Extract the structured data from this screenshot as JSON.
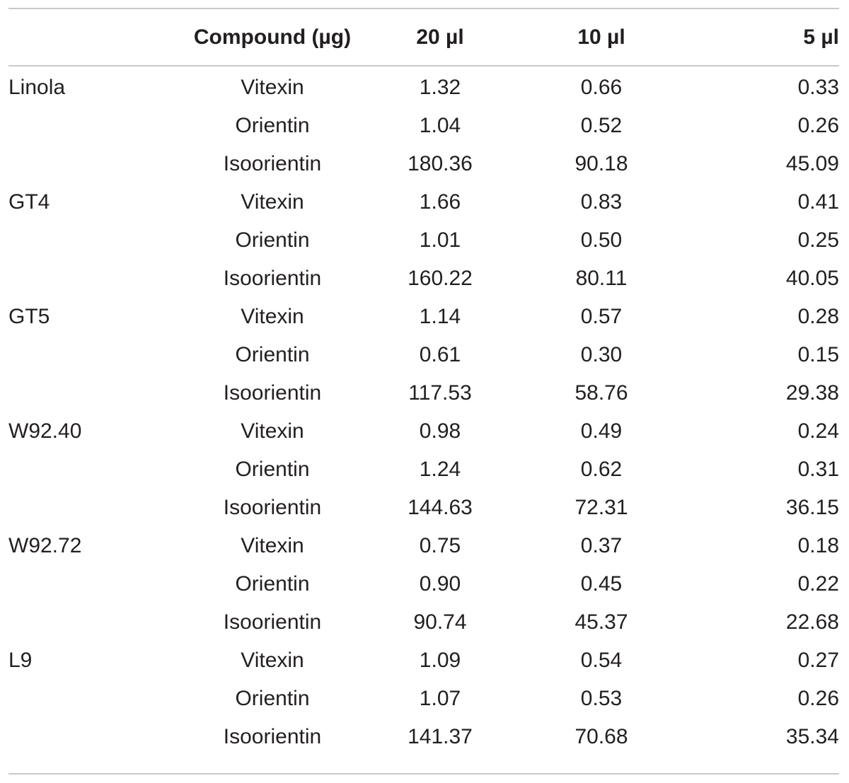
{
  "table": {
    "headers": {
      "line": "",
      "compound": "Compound (µg)",
      "v20": "20 µl",
      "v10": "10 µl",
      "v5": "5 µl"
    },
    "rows": [
      {
        "line": "Linola",
        "compound": "Vitexin",
        "v20": "1.32",
        "v10": "0.66",
        "v5": "0.33"
      },
      {
        "line": "",
        "compound": "Orientin",
        "v20": "1.04",
        "v10": "0.52",
        "v5": "0.26"
      },
      {
        "line": "",
        "compound": "Isoorientin",
        "v20": "180.36",
        "v10": "90.18",
        "v5": "45.09"
      },
      {
        "line": "GT4",
        "compound": "Vitexin",
        "v20": "1.66",
        "v10": "0.83",
        "v5": "0.41"
      },
      {
        "line": "",
        "compound": "Orientin",
        "v20": "1.01",
        "v10": "0.50",
        "v5": "0.25"
      },
      {
        "line": "",
        "compound": "Isoorientin",
        "v20": "160.22",
        "v10": "80.11",
        "v5": "40.05"
      },
      {
        "line": "GT5",
        "compound": "Vitexin",
        "v20": "1.14",
        "v10": "0.57",
        "v5": "0.28"
      },
      {
        "line": "",
        "compound": "Orientin",
        "v20": "0.61",
        "v10": "0.30",
        "v5": "0.15"
      },
      {
        "line": "",
        "compound": "Isoorientin",
        "v20": "117.53",
        "v10": "58.76",
        "v5": "29.38"
      },
      {
        "line": "W92.40",
        "compound": "Vitexin",
        "v20": "0.98",
        "v10": "0.49",
        "v5": "0.24"
      },
      {
        "line": "",
        "compound": "Orientin",
        "v20": "1.24",
        "v10": "0.62",
        "v5": "0.31"
      },
      {
        "line": "",
        "compound": "Isoorientin",
        "v20": "144.63",
        "v10": "72.31",
        "v5": "36.15"
      },
      {
        "line": "W92.72",
        "compound": "Vitexin",
        "v20": "0.75",
        "v10": "0.37",
        "v5": "0.18"
      },
      {
        "line": "",
        "compound": "Orientin",
        "v20": "0.90",
        "v10": "0.45",
        "v5": "0.22"
      },
      {
        "line": "",
        "compound": "Isoorientin",
        "v20": "90.74",
        "v10": "45.37",
        "v5": "22.68"
      },
      {
        "line": "L9",
        "compound": "Vitexin",
        "v20": "1.09",
        "v10": "0.54",
        "v5": "0.27"
      },
      {
        "line": "",
        "compound": "Orientin",
        "v20": "1.07",
        "v10": "0.53",
        "v5": "0.26"
      },
      {
        "line": "",
        "compound": "Isoorientin",
        "v20": "141.37",
        "v10": "70.68",
        "v5": "35.34"
      }
    ]
  }
}
